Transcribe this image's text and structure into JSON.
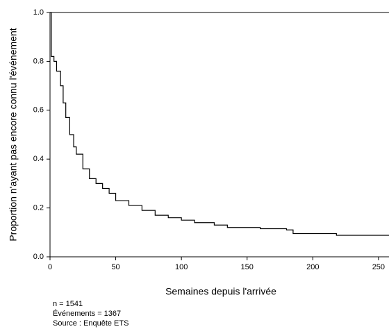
{
  "chart_data": {
    "type": "step",
    "y_label": "Proportion n'ayant pas encore connu l'événement",
    "x_label": "Semaines depuis l'arrivée",
    "notes": [
      "n = 1541",
      "Événements = 1367",
      "Source : Enquête ETS"
    ],
    "x": [
      0,
      1,
      3,
      5,
      8,
      10,
      12,
      15,
      18,
      20,
      25,
      30,
      35,
      40,
      45,
      50,
      60,
      70,
      80,
      90,
      100,
      110,
      125,
      135,
      160,
      180,
      185,
      218,
      258
    ],
    "values": [
      1.0,
      0.82,
      0.8,
      0.76,
      0.7,
      0.63,
      0.57,
      0.5,
      0.45,
      0.42,
      0.36,
      0.32,
      0.3,
      0.28,
      0.26,
      0.23,
      0.21,
      0.19,
      0.17,
      0.16,
      0.15,
      0.14,
      0.13,
      0.12,
      0.115,
      0.11,
      0.095,
      0.088,
      0.088
    ],
    "color": "#000000",
    "xlim": [
      0,
      258
    ],
    "xticks": [
      0,
      50,
      100,
      150,
      200,
      250
    ],
    "ylim": [
      0,
      1
    ],
    "yticks": [
      {
        "value": 0,
        "label": "0.0"
      },
      0.2,
      0.4,
      0.6,
      0.8,
      {
        "value": 1,
        "label": "1.0"
      }
    ]
  }
}
